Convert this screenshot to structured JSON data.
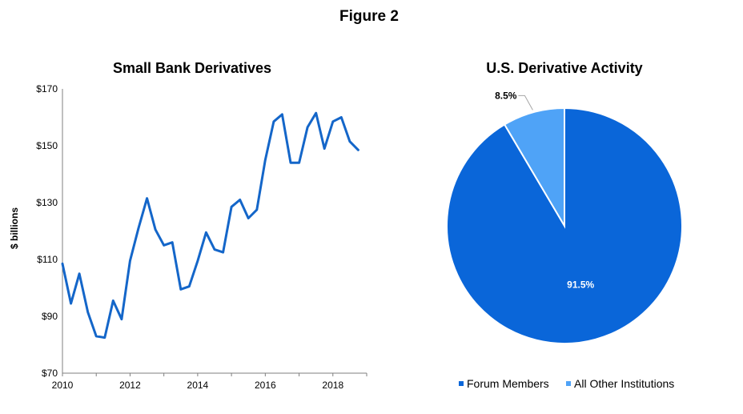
{
  "figure_title": "Figure 2",
  "chart_data": [
    {
      "type": "line",
      "title": "Small Bank Derivatives",
      "xlabel": "",
      "ylabel": "$ billions",
      "xlim": [
        2010,
        2019
      ],
      "ylim": [
        70,
        170
      ],
      "x_ticks": [
        "2010",
        "2012",
        "2014",
        "2016",
        "2018"
      ],
      "x_tick_values": [
        2010,
        2012,
        2014,
        2016,
        2018
      ],
      "y_ticks": [
        "$70",
        "$90",
        "$110",
        "$130",
        "$150",
        "$170"
      ],
      "y_tick_values": [
        70,
        90,
        110,
        130,
        150,
        170
      ],
      "grid": false,
      "color": "#1466c9",
      "series": [
        {
          "x": [
            2010.0,
            2010.25,
            2010.5,
            2010.75,
            2011.0,
            2011.25,
            2011.5,
            2011.75,
            2012.0,
            2012.25,
            2012.5,
            2012.75,
            2013.0,
            2013.25,
            2013.5,
            2013.75,
            2014.0,
            2014.25,
            2014.5,
            2014.75,
            2015.0,
            2015.25,
            2015.5,
            2015.75,
            2016.0,
            2016.25,
            2016.5,
            2016.75,
            2017.0,
            2017.25,
            2017.5,
            2017.75,
            2018.0,
            2018.25,
            2018.5,
            2018.75
          ],
          "values": [
            108.5,
            94.5,
            105,
            91.5,
            83,
            82.5,
            95.5,
            89,
            109.5,
            121,
            131.5,
            120.5,
            115,
            116,
            99.5,
            100.5,
            109.5,
            119.5,
            113.5,
            112.5,
            128.5,
            131,
            124.5,
            127.5,
            145,
            158.5,
            161,
            144,
            144,
            156.5,
            161.5,
            149,
            158.5,
            160,
            151.5,
            148.5
          ]
        }
      ]
    },
    {
      "type": "pie",
      "title": "U.S. Derivative Activity",
      "slices": [
        {
          "name": "Forum Members",
          "value": 91.5,
          "label": "91.5%",
          "color": "#0a66d9"
        },
        {
          "name": "All Other Institutions",
          "value": 8.5,
          "label": "8.5%",
          "color": "#4fa3f7"
        }
      ],
      "legend": "bottom",
      "border_color": "#ffffff"
    }
  ]
}
